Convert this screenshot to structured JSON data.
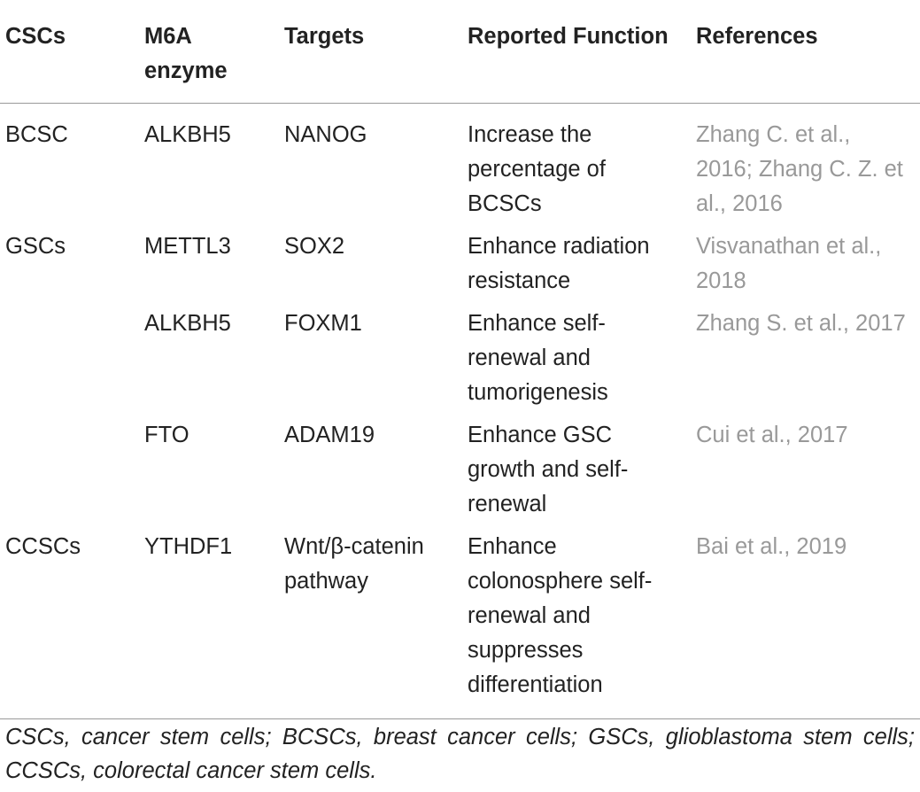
{
  "table": {
    "header": [
      "CSCs",
      "M6A enzyme",
      "Targets",
      "Reported Function",
      "References"
    ],
    "rows": [
      [
        "BCSC",
        "ALKBH5",
        "NANOG",
        "Increase the percentage of BCSCs",
        "Zhang C. et al., 2016; Zhang C. Z. et al., 2016"
      ],
      [
        "GSCs",
        "METTL3",
        "SOX2",
        "Enhance radiation resistance",
        "Visvanathan et al., 2018"
      ],
      [
        null,
        "ALKBH5",
        "FOXM1",
        "Enhance self-renewal and tumorigenesis",
        "Zhang S. et al., 2017"
      ],
      [
        null,
        "FTO",
        "ADAM19",
        "Enhance GSC growth and self-renewal",
        "Cui et al., 2017"
      ],
      [
        "CCSCs",
        "YTHDF1",
        "Wnt/β-catenin pathway",
        "Enhance colonosphere self-renewal and suppresses differentiation",
        "Bai et al., 2019"
      ]
    ],
    "footnote": "CSCs, cancer stem cells; BCSCs, breast cancer cells; GSCs, glioblastoma stem cells; CCSCs, colorectal cancer stem cells."
  }
}
